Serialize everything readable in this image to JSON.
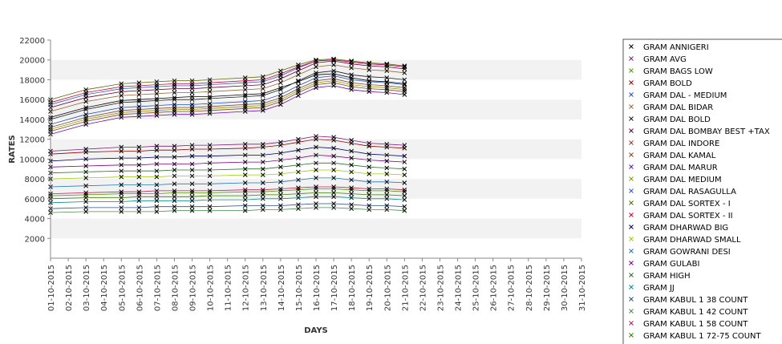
{
  "chart_data": {
    "type": "line",
    "title": "",
    "xlabel": "DAYS",
    "ylabel": "RATES",
    "ylim": [
      0,
      22000
    ],
    "yticks": [
      2000,
      4000,
      6000,
      8000,
      10000,
      12000,
      14000,
      16000,
      18000,
      20000,
      22000
    ],
    "x_dates": [
      "01-10-2015",
      "02-10-2015",
      "03-10-2015",
      "04-10-2015",
      "05-10-2015",
      "06-10-2015",
      "07-10-2015",
      "08-10-2015",
      "09-10-2015",
      "10-10-2015",
      "11-10-2015",
      "12-10-2015",
      "13-10-2015",
      "14-10-2015",
      "15-10-2015",
      "16-10-2015",
      "17-10-2015",
      "18-10-2015",
      "19-10-2015",
      "20-10-2015",
      "21-10-2015",
      "22-10-2015",
      "23-10-2015",
      "24-10-2015",
      "25-10-2015",
      "26-10-2015",
      "27-10-2015",
      "28-10-2015",
      "29-10-2015",
      "30-10-2015",
      "31-10-2015"
    ],
    "grid": "alternating horizontal bands",
    "legend_position": "right",
    "series": [
      {
        "name": "GRAM ANNIGERI",
        "color": "#000000",
        "values": [
          14200,
          null,
          15200,
          null,
          15900,
          16000,
          16100,
          16200,
          16300,
          16300,
          null,
          16500,
          16600,
          17200,
          17800,
          18500,
          18600,
          18200,
          17900,
          17800,
          17600
        ]
      },
      {
        "name": "GRAM AVG",
        "color": "#7a1f7a",
        "values": [
          10800,
          null,
          11000,
          null,
          11200,
          11200,
          11300,
          11300,
          11400,
          11400,
          null,
          11500,
          11500,
          11700,
          12000,
          12300,
          12200,
          11900,
          11600,
          11500,
          11400
        ]
      },
      {
        "name": "GRAM BAGS LOW",
        "color": "#4c9900",
        "values": [
          6300,
          null,
          6400,
          null,
          6500,
          6500,
          6500,
          6600,
          6600,
          6600,
          null,
          6700,
          6700,
          6800,
          6900,
          7000,
          7000,
          6900,
          6800,
          6800,
          6700
        ]
      },
      {
        "name": "GRAM BOLD",
        "color": "#8b0000",
        "values": [
          10500,
          null,
          10700,
          null,
          10800,
          10800,
          10900,
          10900,
          11000,
          11000,
          null,
          11100,
          11200,
          11400,
          11700,
          12000,
          11900,
          11600,
          11300,
          11200,
          11100
        ]
      },
      {
        "name": "GRAM DAL - MEDIUM",
        "color": "#1f4fbf",
        "values": [
          13500,
          null,
          14500,
          null,
          15200,
          15300,
          15400,
          15500,
          15500,
          15600,
          null,
          15800,
          15900,
          16500,
          17400,
          18200,
          18400,
          18000,
          17800,
          17700,
          17500
        ]
      },
      {
        "name": "GRAM DAL BIDAR",
        "color": "#996633",
        "values": [
          14800,
          null,
          15800,
          null,
          16400,
          16500,
          16600,
          16700,
          16700,
          16800,
          null,
          17000,
          17100,
          17700,
          18500,
          19300,
          19500,
          19200,
          19000,
          18900,
          18700
        ]
      },
      {
        "name": "GRAM DAL BOLD",
        "color": "#1a1a1a",
        "values": [
          14000,
          null,
          15000,
          null,
          15700,
          15800,
          15900,
          16000,
          16000,
          16100,
          null,
          16300,
          16400,
          17000,
          17900,
          18700,
          18900,
          18500,
          18300,
          18200,
          18000
        ]
      },
      {
        "name": "GRAM DAL BOMBAY BEST +TAX",
        "color": "#660033",
        "values": [
          15200,
          null,
          16200,
          null,
          16800,
          16900,
          17000,
          17100,
          17100,
          17200,
          null,
          17400,
          17500,
          18100,
          18900,
          19700,
          19900,
          19600,
          19400,
          19300,
          19100
        ]
      },
      {
        "name": "GRAM DAL INDORE",
        "color": "#8b3a3a",
        "values": [
          13200,
          null,
          14200,
          null,
          14900,
          15000,
          15100,
          15200,
          15200,
          15300,
          null,
          15500,
          15600,
          16200,
          17100,
          17900,
          18100,
          17700,
          17500,
          17400,
          17200
        ]
      },
      {
        "name": "GRAM DAL KAMAL",
        "color": "#8b4513",
        "values": [
          12800,
          null,
          13800,
          null,
          14500,
          14600,
          14700,
          14800,
          14800,
          14900,
          null,
          15100,
          15200,
          15800,
          16700,
          17500,
          17700,
          17300,
          17100,
          17000,
          16800
        ]
      },
      {
        "name": "GRAM DAL MARUR",
        "color": "#6a0dad",
        "values": [
          12500,
          null,
          13500,
          null,
          14200,
          14300,
          14400,
          14500,
          14500,
          14600,
          null,
          14800,
          14900,
          15500,
          16400,
          17200,
          17400,
          17000,
          16800,
          16700,
          16500
        ]
      },
      {
        "name": "GRAM DAL MEDIUM",
        "color": "#80a000",
        "values": [
          13000,
          null,
          14000,
          null,
          14700,
          14800,
          14900,
          15000,
          15000,
          15100,
          null,
          15300,
          15400,
          16000,
          16900,
          17700,
          17900,
          17500,
          17300,
          17200,
          17000
        ]
      },
      {
        "name": "GRAM DAL RASAGULLA",
        "color": "#3355cc",
        "values": [
          15500,
          null,
          16500,
          null,
          17100,
          17200,
          17300,
          17400,
          17400,
          17500,
          null,
          17700,
          17800,
          18400,
          19200,
          19900,
          20000,
          19800,
          19600,
          19500,
          19300
        ]
      },
      {
        "name": "GRAM DAL SORTEX - I",
        "color": "#556b00",
        "values": [
          16000,
          null,
          17000,
          null,
          17600,
          17700,
          17800,
          17900,
          17900,
          18000,
          null,
          18200,
          18300,
          18900,
          19500,
          20000,
          20100,
          19900,
          19700,
          19600,
          19400
        ]
      },
      {
        "name": "GRAM DAL SORTEX - II",
        "color": "#cc0033",
        "values": [
          15700,
          null,
          16700,
          null,
          17300,
          17400,
          17500,
          17600,
          17600,
          17700,
          null,
          17900,
          18000,
          18600,
          19300,
          19900,
          20000,
          19800,
          19600,
          19500,
          19300
        ]
      },
      {
        "name": "GRAM DHARWAD BIG",
        "color": "#000066",
        "values": [
          9800,
          null,
          10000,
          null,
          10100,
          10100,
          10200,
          10200,
          10300,
          10300,
          null,
          10400,
          10400,
          10600,
          10900,
          11200,
          11100,
          10800,
          10500,
          10400,
          10300
        ]
      },
      {
        "name": "GRAM DHARWAD SMALL",
        "color": "#99cc00",
        "values": [
          8000,
          null,
          8100,
          null,
          8200,
          8200,
          8200,
          8300,
          8300,
          8300,
          null,
          8400,
          8400,
          8500,
          8700,
          8900,
          8900,
          8700,
          8500,
          8500,
          8400
        ]
      },
      {
        "name": "GRAM GOWRANI DESI",
        "color": "#1f77b4",
        "values": [
          7200,
          null,
          7300,
          null,
          7400,
          7400,
          7400,
          7500,
          7500,
          7500,
          null,
          7600,
          7600,
          7700,
          7900,
          8100,
          8100,
          7900,
          7700,
          7700,
          7600
        ]
      },
      {
        "name": "GRAM GULABI",
        "color": "#800080",
        "values": [
          9200,
          null,
          9300,
          null,
          9400,
          9400,
          9500,
          9500,
          9500,
          9600,
          null,
          9700,
          9700,
          9900,
          10100,
          10400,
          10300,
          10100,
          9900,
          9800,
          9700
        ]
      },
      {
        "name": "GRAM HIGH",
        "color": "#2e6b2e",
        "values": [
          8600,
          null,
          8700,
          null,
          8800,
          8800,
          8800,
          8900,
          8900,
          8900,
          null,
          9000,
          9000,
          9200,
          9400,
          9600,
          9600,
          9400,
          9200,
          9100,
          9000
        ]
      },
      {
        "name": "GRAM JJ",
        "color": "#008b8b",
        "values": [
          5600,
          null,
          5700,
          null,
          5700,
          5800,
          5800,
          5800,
          5800,
          5900,
          null,
          5900,
          6000,
          6000,
          6100,
          6200,
          6200,
          6100,
          6000,
          6000,
          5900
        ]
      },
      {
        "name": "GRAM KABUL 1 38 COUNT",
        "color": "#2f4f7f",
        "values": [
          5000,
          null,
          5100,
          null,
          5100,
          5100,
          5200,
          5200,
          5200,
          5200,
          null,
          5300,
          5300,
          5300,
          5400,
          5500,
          5500,
          5400,
          5300,
          5300,
          5200
        ]
      },
      {
        "name": "GRAM KABUL 1 42 COUNT",
        "color": "#4d8a4d",
        "values": [
          4600,
          null,
          4700,
          null,
          4700,
          4700,
          4700,
          4800,
          4800,
          4800,
          null,
          4800,
          4900,
          4900,
          5000,
          5100,
          5100,
          5000,
          4900,
          4900,
          4800
        ]
      },
      {
        "name": "GRAM KABUL 1 58 COUNT",
        "color": "#c2185b",
        "values": [
          6500,
          null,
          6600,
          null,
          6700,
          6700,
          6800,
          6800,
          6800,
          6800,
          null,
          6900,
          6900,
          7000,
          7100,
          7200,
          7200,
          7100,
          7000,
          7000,
          6900
        ]
      },
      {
        "name": "GRAM KABUL 1 72-75 COUNT",
        "color": "#3a7d00",
        "values": [
          6000,
          null,
          6100,
          null,
          6100,
          6200,
          6200,
          6200,
          6200,
          6300,
          null,
          6300,
          6400,
          6400,
          6500,
          6600,
          6600,
          6500,
          6400,
          6400,
          6300
        ]
      }
    ]
  }
}
